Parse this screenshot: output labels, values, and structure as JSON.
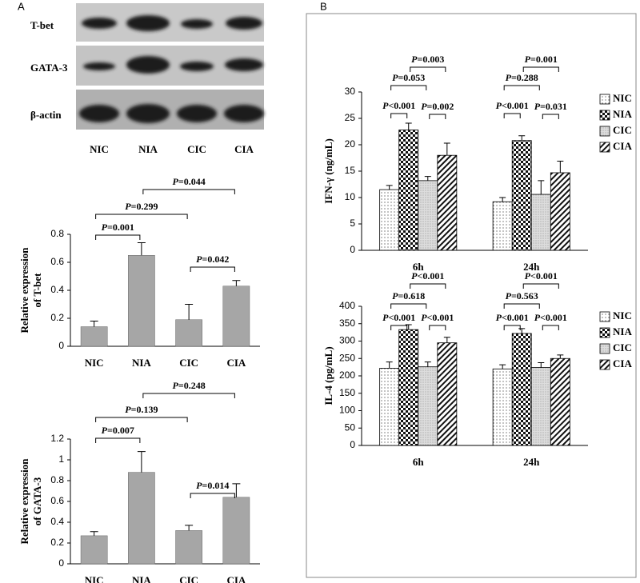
{
  "panels": [
    "A",
    "B"
  ],
  "blot": {
    "rows": [
      "T-bet",
      "GATA-3",
      "β-actin"
    ],
    "lanes": [
      "NIC",
      "NIA",
      "CIC",
      "CIA"
    ]
  },
  "chart_data": [
    {
      "type": "bar",
      "ylabel": [
        "Relative expression",
        "of T-bet"
      ],
      "categories": [
        "NIC",
        "NIA",
        "CIC",
        "CIA"
      ],
      "values": [
        0.14,
        0.65,
        0.19,
        0.43
      ],
      "errors": [
        0.04,
        0.09,
        0.11,
        0.04
      ],
      "color": "#a6a6a6",
      "ylim": [
        0,
        0.8
      ],
      "yticks": [
        0,
        0.2,
        0.4,
        0.6,
        0.8
      ],
      "annotations": [
        {
          "between": [
            "NIC",
            "NIA"
          ],
          "text": "P=0.001"
        },
        {
          "between": [
            "NIC",
            "CIC"
          ],
          "text": "P=0.299"
        },
        {
          "between": [
            "NIA",
            "CIA"
          ],
          "text": "P=0.044"
        },
        {
          "between": [
            "CIC",
            "CIA"
          ],
          "text": "P=0.042"
        }
      ]
    },
    {
      "type": "bar",
      "ylabel": [
        "Relative expression",
        "of GATA-3"
      ],
      "categories": [
        "NIC",
        "NIA",
        "CIC",
        "CIA"
      ],
      "values": [
        0.27,
        0.88,
        0.32,
        0.64
      ],
      "errors": [
        0.04,
        0.2,
        0.05,
        0.13
      ],
      "color": "#a6a6a6",
      "ylim": [
        0,
        1.2
      ],
      "yticks": [
        0,
        0.2,
        0.4,
        0.6,
        0.8,
        1,
        1.2
      ],
      "annotations": [
        {
          "between": [
            "NIC",
            "NIA"
          ],
          "text": "P=0.007"
        },
        {
          "between": [
            "NIC",
            "CIC"
          ],
          "text": "P=0.139"
        },
        {
          "between": [
            "NIA",
            "CIA"
          ],
          "text": "P=0.248"
        },
        {
          "between": [
            "CIC",
            "CIA"
          ],
          "text": "P=0.014"
        }
      ]
    },
    {
      "type": "bar",
      "ylabel": "IFN-γ (ng/mL)",
      "categories": [
        "6h",
        "24h"
      ],
      "legend": "right",
      "series": [
        {
          "name": "NIC",
          "pattern": "dots",
          "values": [
            11.5,
            9.2
          ],
          "errors": [
            0.8,
            0.8
          ]
        },
        {
          "name": "NIA",
          "pattern": "checker",
          "values": [
            22.8,
            20.8
          ],
          "errors": [
            1.3,
            0.9
          ]
        },
        {
          "name": "CIC",
          "pattern": "fine-dots",
          "values": [
            13.2,
            10.6
          ],
          "errors": [
            0.8,
            2.6
          ]
        },
        {
          "name": "CIA",
          "pattern": "stripes",
          "values": [
            18,
            14.7
          ],
          "errors": [
            2.3,
            2.2
          ]
        }
      ],
      "ylim": [
        0,
        30
      ],
      "yticks": [
        0,
        5,
        10,
        15,
        20,
        25,
        30
      ],
      "annotations": [
        {
          "category": "6h",
          "between": [
            "NIC",
            "NIA"
          ],
          "text": "P<0.001"
        },
        {
          "category": "6h",
          "between": [
            "NIC",
            "CIC"
          ],
          "text": "P=0.053"
        },
        {
          "category": "6h",
          "between": [
            "NIA",
            "CIA"
          ],
          "text": "P=0.003"
        },
        {
          "category": "6h",
          "between": [
            "CIC",
            "CIA"
          ],
          "text": "P=0.002"
        },
        {
          "category": "24h",
          "between": [
            "NIC",
            "NIA"
          ],
          "text": "P<0.001"
        },
        {
          "category": "24h",
          "between": [
            "NIC",
            "CIC"
          ],
          "text": "P=0.288"
        },
        {
          "category": "24h",
          "between": [
            "NIA",
            "CIA"
          ],
          "text": "P=0.001"
        },
        {
          "category": "24h",
          "between": [
            "CIC",
            "CIA"
          ],
          "text": "P=0.031"
        }
      ]
    },
    {
      "type": "bar",
      "ylabel": "IL-4 (pg/mL)",
      "categories": [
        "6h",
        "24h"
      ],
      "legend": "right",
      "series": [
        {
          "name": "NIC",
          "pattern": "dots",
          "values": [
            222,
            220
          ],
          "errors": [
            18,
            12
          ]
        },
        {
          "name": "NIA",
          "pattern": "checker",
          "values": [
            333,
            322
          ],
          "errors": [
            14,
            14
          ]
        },
        {
          "name": "CIC",
          "pattern": "fine-dots",
          "values": [
            226,
            224
          ],
          "errors": [
            14,
            14
          ]
        },
        {
          "name": "CIA",
          "pattern": "stripes",
          "values": [
            295,
            250
          ],
          "errors": [
            16,
            10
          ]
        }
      ],
      "ylim": [
        0,
        400
      ],
      "yticks": [
        0,
        50,
        100,
        150,
        200,
        250,
        300,
        350,
        400
      ],
      "annotations": [
        {
          "category": "6h",
          "between": [
            "NIC",
            "NIA"
          ],
          "text": "P<0.001"
        },
        {
          "category": "6h",
          "between": [
            "NIC",
            "CIC"
          ],
          "text": "P=0.618"
        },
        {
          "category": "6h",
          "between": [
            "NIA",
            "CIA"
          ],
          "text": "P<0.001"
        },
        {
          "category": "6h",
          "between": [
            "CIC",
            "CIA"
          ],
          "text": "P<0.001"
        },
        {
          "category": "24h",
          "between": [
            "NIC",
            "NIA"
          ],
          "text": "P<0.001"
        },
        {
          "category": "24h",
          "between": [
            "NIC",
            "CIC"
          ],
          "text": "P=0.563"
        },
        {
          "category": "24h",
          "between": [
            "NIA",
            "CIA"
          ],
          "text": "P<0.001"
        },
        {
          "category": "24h",
          "between": [
            "CIC",
            "CIA"
          ],
          "text": "P<0.001"
        }
      ]
    }
  ]
}
